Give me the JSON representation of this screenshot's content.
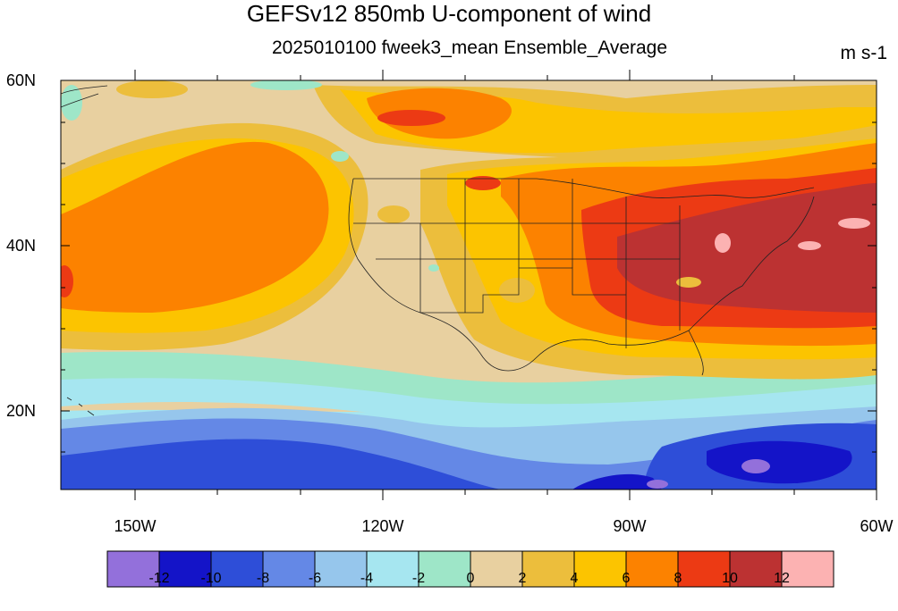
{
  "title": "GEFSv12 850mb U-component of wind",
  "subtitle": "2025010100 fweek3_mean Ensemble_Average",
  "units": "m s-1",
  "lat_labels": [
    "60N",
    "40N",
    "20N"
  ],
  "lon_labels": [
    "150W",
    "120W",
    "90W",
    "60W"
  ],
  "colorbar": {
    "colors": [
      "#9370db",
      "#1414c8",
      "#2e4ed8",
      "#6488e6",
      "#96c6ec",
      "#a6e6f0",
      "#9ee6c8",
      "#e8d0a0",
      "#ecbe3c",
      "#fcc400",
      "#fc8200",
      "#ec3a14",
      "#bc3232",
      "#fcb2b2"
    ],
    "labels": [
      "-12",
      "-10",
      "-8",
      "-6",
      "-4",
      "-2",
      "0",
      "2",
      "4",
      "6",
      "8",
      "10",
      "12"
    ]
  },
  "map": {
    "lat_range": [
      10,
      60
    ],
    "lon_range": [
      -160,
      -60
    ]
  }
}
